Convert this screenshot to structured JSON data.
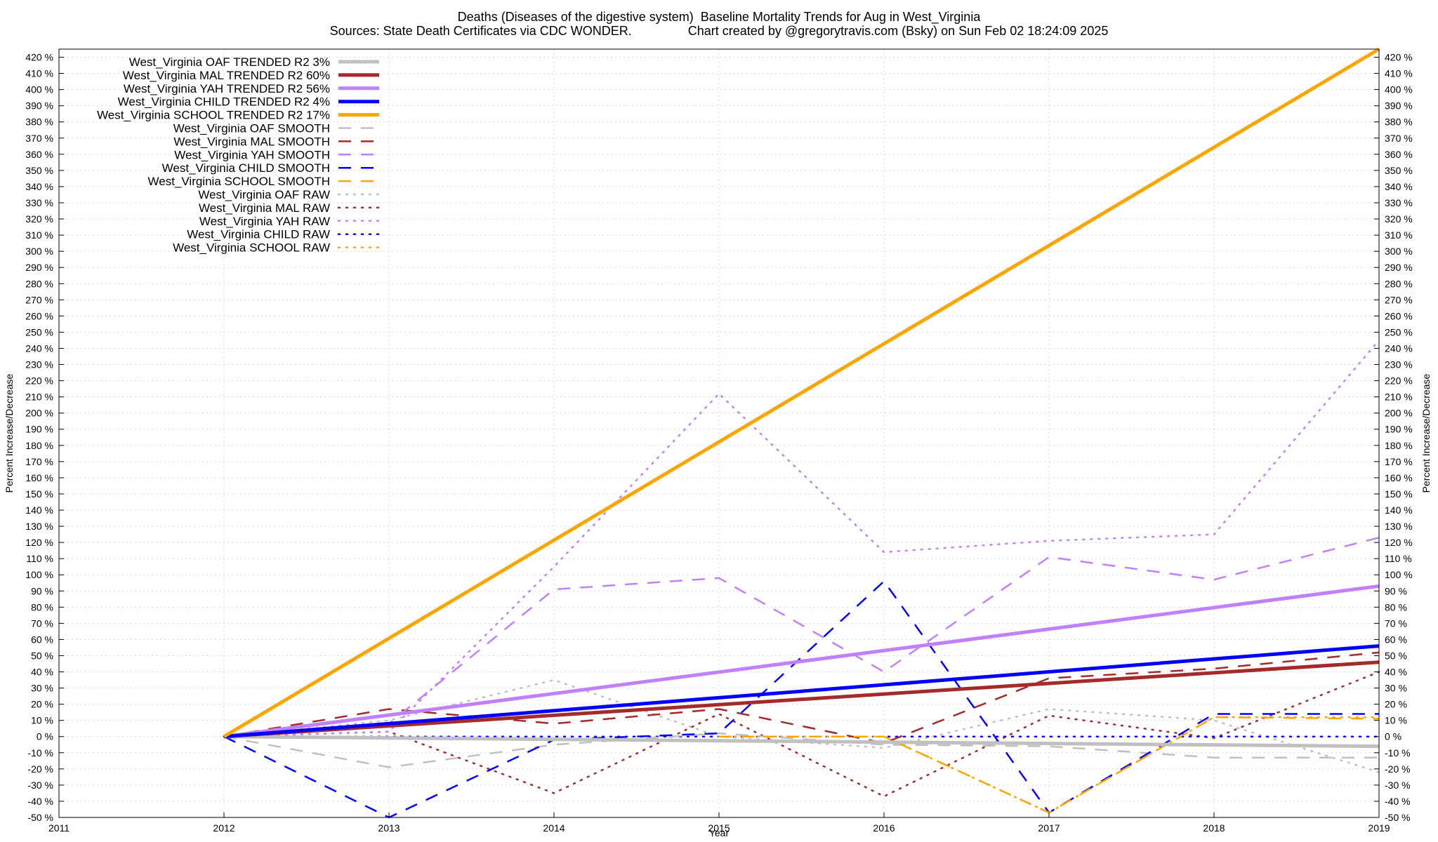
{
  "chart_data": {
    "type": "line",
    "title": "Deaths (Diseases of the digestive system)  Baseline Mortality Trends for Aug in West_Virginia",
    "subtitle": "Sources: State Death Certificates via CDC WONDER.                Chart created by @gregorytravis.com (Bsky) on Sun Feb 02 18:24:09 2025",
    "xlabel": "Year",
    "ylabel": "Percent Increase/Decrease",
    "y2label": "Percent Increase/Decrease",
    "xlim": [
      2011,
      2019
    ],
    "ylim": [
      -50,
      425
    ],
    "x_ticks": [
      2011,
      2012,
      2013,
      2014,
      2015,
      2016,
      2017,
      2018,
      2019
    ],
    "y_ticks": [
      -50,
      -40,
      -30,
      -20,
      -10,
      0,
      10,
      20,
      30,
      40,
      50,
      60,
      70,
      80,
      90,
      100,
      110,
      120,
      130,
      140,
      150,
      160,
      170,
      180,
      190,
      200,
      210,
      220,
      230,
      240,
      250,
      260,
      270,
      280,
      290,
      300,
      310,
      320,
      330,
      340,
      350,
      360,
      370,
      380,
      390,
      400,
      410,
      420
    ],
    "y_tick_suffix": " %",
    "grid": true,
    "legend_position": "top-left",
    "series": [
      {
        "name": "West_Virginia OAF TRENDED R2  3%",
        "style": "solid",
        "color": "#c0c0c0",
        "x": [
          2012,
          2019
        ],
        "y": [
          0,
          -6
        ]
      },
      {
        "name": "West_Virginia MAL TRENDED R2  60%",
        "style": "solid",
        "color": "#a52a2a",
        "x": [
          2012,
          2019
        ],
        "y": [
          0,
          46
        ]
      },
      {
        "name": "West_Virginia YAH TRENDED R2  56%",
        "style": "solid",
        "color": "#c080ff",
        "x": [
          2012,
          2019
        ],
        "y": [
          0,
          93
        ]
      },
      {
        "name": "West_Virginia CHILD TRENDED R2  4%",
        "style": "solid",
        "color": "#0000ff",
        "x": [
          2012,
          2019
        ],
        "y": [
          0,
          56
        ]
      },
      {
        "name": "West_Virginia SCHOOL TRENDED R2  17%",
        "style": "solid",
        "color": "#ffa500",
        "x": [
          2012,
          2019
        ],
        "y": [
          0,
          425
        ]
      },
      {
        "name": "West_Virginia OAF SMOOTH",
        "style": "dashed",
        "color": "#c0c0c0",
        "x": [
          2012,
          2013,
          2014,
          2015,
          2016,
          2017,
          2018,
          2019
        ],
        "y": [
          0,
          -19,
          -5,
          2,
          -5,
          -6,
          -13,
          -13
        ]
      },
      {
        "name": "West_Virginia MAL SMOOTH",
        "style": "dashed",
        "color": "#a52a2a",
        "x": [
          2012,
          2013,
          2014,
          2015,
          2016,
          2017,
          2018,
          2019
        ],
        "y": [
          0,
          17,
          8,
          17,
          -4,
          36,
          42,
          52
        ]
      },
      {
        "name": "West_Virginia YAH SMOOTH",
        "style": "dashed",
        "color": "#c080ff",
        "x": [
          2012,
          2013,
          2014,
          2015,
          2016,
          2017,
          2018,
          2019
        ],
        "y": [
          0,
          8,
          91,
          98,
          40,
          111,
          97,
          123
        ]
      },
      {
        "name": "West_Virginia CHILD SMOOTH",
        "style": "dashed",
        "color": "#0000ff",
        "x": [
          2012,
          2013,
          2014,
          2015,
          2016,
          2017,
          2018,
          2019
        ],
        "y": [
          0,
          -50,
          -2,
          2,
          96,
          -47,
          14,
          14
        ]
      },
      {
        "name": "West_Virginia SCHOOL SMOOTH",
        "style": "dashed",
        "color": "#ffa500",
        "x": [
          2015,
          2016,
          2017,
          2018,
          2019
        ],
        "y": [
          0,
          0,
          -47,
          12,
          11
        ]
      },
      {
        "name": "West_Virginia OAF RAW",
        "style": "dotted",
        "color": "#c0c0c0",
        "x": [
          2012,
          2013,
          2014,
          2015,
          2016,
          2017,
          2018,
          2019
        ],
        "y": [
          0,
          10,
          35,
          0,
          -7,
          17,
          10,
          -22
        ]
      },
      {
        "name": "West_Virginia MAL RAW",
        "style": "dotted",
        "color": "#a52a2a",
        "x": [
          2012,
          2013,
          2014,
          2015,
          2016,
          2017,
          2018,
          2019
        ],
        "y": [
          0,
          3,
          -35,
          14,
          -37,
          13,
          -1,
          40
        ]
      },
      {
        "name": "West_Virginia YAH RAW",
        "style": "dotted",
        "color": "#c080ff",
        "x": [
          2012,
          2013,
          2014,
          2015,
          2016,
          2017,
          2018,
          2019
        ],
        "y": [
          0,
          3,
          105,
          212,
          114,
          121,
          125,
          245
        ]
      },
      {
        "name": "West_Virginia CHILD RAW",
        "style": "dotted",
        "color": "#0000ff",
        "x": [
          2012,
          2013,
          2014,
          2015,
          2016,
          2017,
          2018,
          2019
        ],
        "y": [
          0,
          0,
          0,
          0,
          0,
          0,
          0,
          0
        ]
      },
      {
        "name": "West_Virginia SCHOOL RAW",
        "style": "dotted",
        "color": "#ffa500",
        "x": [
          2015,
          2016,
          2017,
          2018,
          2019
        ],
        "y": [
          0,
          0,
          -47,
          12,
          12
        ]
      }
    ]
  }
}
